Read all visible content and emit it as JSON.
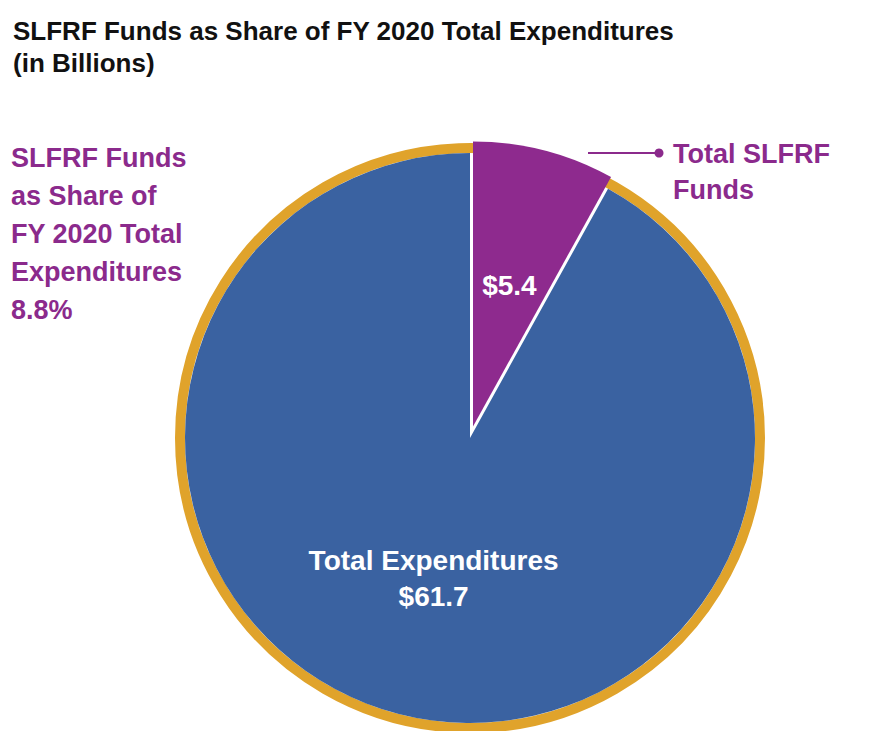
{
  "chart_data": {
    "type": "pie",
    "title": "SLFRF Funds as Share of FY 2020 Total Expenditures\n(in Billions)",
    "annotation": "SLFRF Funds\nas Share of\nFY 2020 Total\nExpenditures\n8.8%",
    "categories": [
      "Total SLFRF Funds",
      "Total Expenditures"
    ],
    "values": [
      5.4,
      61.7
    ],
    "value_labels": [
      "$5.4",
      "$61.7"
    ],
    "colors": [
      "#8e2a8e",
      "#3a62a1"
    ],
    "data_labels": true
  }
}
